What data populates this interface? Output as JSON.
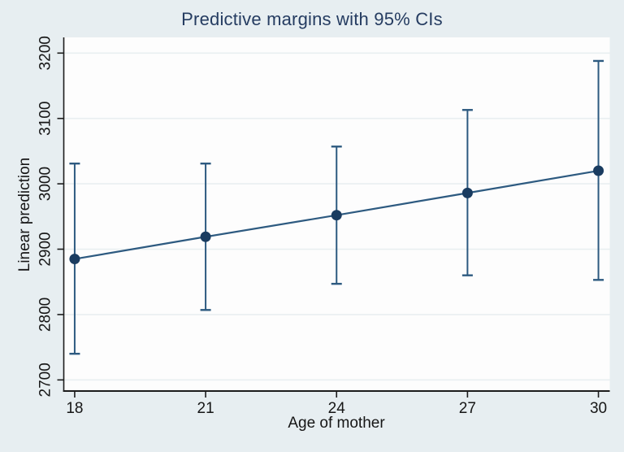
{
  "colors": {
    "background": "#e7eef1",
    "plot_background": "#fdfdfd",
    "gridline": "#e9eff1",
    "axis": "#1c1c1c",
    "text": "#161616",
    "title": "#253c61",
    "series_line": "#2d5a80",
    "marker_fill": "#1a3c60"
  },
  "chart_data": {
    "type": "line",
    "title": "Predictive margins with 95% CIs",
    "xlabel": "Age of mother",
    "ylabel": "Linear prediction",
    "x": [
      18,
      21,
      24,
      27,
      30
    ],
    "series": [
      {
        "name": "fitted",
        "values": [
          2885,
          2919,
          2952,
          2986,
          3020
        ]
      },
      {
        "name": "ci_lower",
        "values": [
          2740,
          2807,
          2847,
          2860,
          2853
        ]
      },
      {
        "name": "ci_upper",
        "values": [
          3031,
          3031,
          3057,
          3113,
          3188
        ]
      }
    ],
    "x_ticks": [
      18,
      21,
      24,
      27,
      30
    ],
    "y_ticks": [
      2700,
      2800,
      2900,
      3000,
      3100,
      3200
    ],
    "xlim": [
      17.75,
      30.26
    ],
    "ylim": [
      2683,
      3224
    ],
    "grid": true,
    "legend": "none",
    "marker": "circle",
    "ci_style": "capped-error-bars"
  }
}
